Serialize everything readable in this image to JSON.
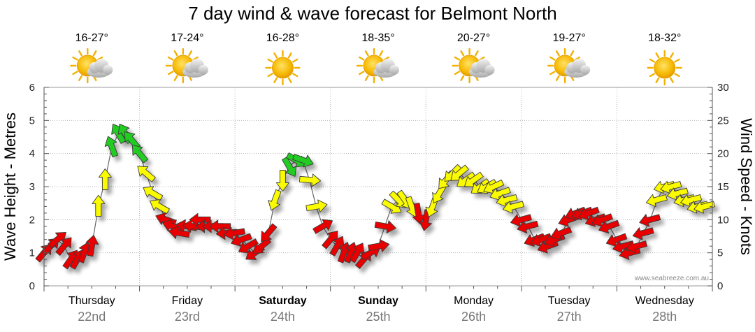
{
  "chart_data": {
    "type": "line",
    "title": "7 day wind & wave forecast for Belmont North",
    "ylabel_left": "Wave Height - Metres",
    "ylabel_right": "Wind Speed - Knots",
    "ylim_left": [
      0,
      6
    ],
    "ylim_right": [
      0,
      30
    ],
    "yticks_left": [
      "0",
      "1",
      "2",
      "3",
      "4",
      "5",
      "6"
    ],
    "yticks_right": [
      "0",
      "5",
      "10",
      "15",
      "20",
      "25",
      "30"
    ],
    "grid": true,
    "days": [
      {
        "name": "Thursday",
        "date": "22nd",
        "temp": "16-27°",
        "icon": "partly-cloudy-icon",
        "bold": false
      },
      {
        "name": "Friday",
        "date": "23rd",
        "temp": "17-24°",
        "icon": "partly-cloudy-icon",
        "bold": false
      },
      {
        "name": "Saturday",
        "date": "24th",
        "temp": "16-28°",
        "icon": "sunny-icon",
        "bold": true
      },
      {
        "name": "Sunday",
        "date": "25th",
        "temp": "18-35°",
        "icon": "partly-cloudy-icon",
        "bold": true
      },
      {
        "name": "Monday",
        "date": "26th",
        "temp": "20-27°",
        "icon": "partly-cloudy-icon",
        "bold": false
      },
      {
        "name": "Tuesday",
        "date": "27th",
        "temp": "19-27°",
        "icon": "partly-cloudy-icon",
        "bold": false
      },
      {
        "name": "Wednesday",
        "date": "28th",
        "temp": "18-32°",
        "icon": "sunny-icon",
        "bold": false
      }
    ],
    "wind_series": {
      "name": "Wind Speed",
      "x_day_fraction": [
        0.0,
        0.07,
        0.14,
        0.21,
        0.28,
        0.35,
        0.42,
        0.5,
        0.57,
        0.64,
        0.71,
        0.78,
        0.85,
        0.92,
        1.0,
        1.07,
        1.14,
        1.21,
        1.28,
        1.35,
        1.42,
        1.5,
        1.57,
        1.64,
        1.71,
        1.78,
        1.85,
        1.92,
        2.0,
        2.07,
        2.14,
        2.21,
        2.28,
        2.35,
        2.42,
        2.5,
        2.57,
        2.64,
        2.71,
        2.78,
        2.85,
        2.92,
        3.0,
        3.07,
        3.14,
        3.21,
        3.28,
        3.35,
        3.42,
        3.5,
        3.57,
        3.64,
        3.71,
        3.78,
        3.85,
        3.92,
        4.0,
        4.07,
        4.14,
        4.21,
        4.28,
        4.35,
        4.42,
        4.5,
        4.57,
        4.64,
        4.71,
        4.78,
        4.85,
        4.92,
        5.0,
        5.07,
        5.14,
        5.21,
        5.28,
        5.35,
        5.42,
        5.5,
        5.57,
        5.64,
        5.71,
        5.78,
        5.85,
        5.92,
        6.0,
        6.07,
        6.14,
        6.21,
        6.28,
        6.35,
        6.42,
        6.5,
        6.57,
        6.64,
        6.71,
        6.78,
        6.85,
        6.92
      ],
      "knots": [
        5,
        6,
        7,
        6,
        4,
        4,
        5,
        6,
        12,
        16,
        21,
        23,
        23,
        22,
        20,
        17,
        14,
        12,
        10,
        9,
        8,
        9,
        9,
        10,
        9,
        9,
        9,
        8,
        8,
        7,
        6,
        5,
        6,
        8,
        13,
        16,
        18,
        19,
        19,
        16,
        12,
        9,
        7,
        6,
        5,
        5,
        5,
        4,
        5,
        6,
        9,
        12,
        13,
        13,
        12,
        11,
        10,
        12,
        14,
        16,
        17,
        17,
        16,
        16,
        15,
        15,
        15,
        14,
        13,
        12,
        10,
        9,
        7,
        7,
        6,
        7,
        8,
        10,
        11,
        11,
        11,
        10,
        10,
        9,
        7,
        6,
        5,
        6,
        8,
        10,
        13,
        15,
        15,
        14,
        13,
        13,
        12,
        12
      ],
      "direction_deg": [
        40,
        45,
        50,
        40,
        35,
        30,
        20,
        10,
        0,
        0,
        340,
        330,
        330,
        320,
        320,
        310,
        300,
        300,
        290,
        290,
        280,
        280,
        275,
        270,
        270,
        270,
        270,
        265,
        260,
        250,
        240,
        235,
        230,
        220,
        200,
        180,
        150,
        120,
        110,
        95,
        80,
        60,
        40,
        30,
        20,
        20,
        30,
        40,
        60,
        80,
        100,
        120,
        135,
        145,
        160,
        170,
        190,
        200,
        210,
        220,
        225,
        230,
        235,
        235,
        235,
        240,
        245,
        250,
        255,
        255,
        255,
        255,
        250,
        250,
        250,
        250,
        250,
        250,
        250,
        250,
        250,
        250,
        250,
        250,
        250,
        255,
        255,
        255,
        255,
        255,
        255,
        255,
        255,
        255,
        255,
        255,
        255,
        255
      ],
      "colour_bands": [
        {
          "min": 0,
          "max": 12,
          "colour": "#e80000"
        },
        {
          "min": 12,
          "max": 18,
          "colour": "#fafa00"
        },
        {
          "min": 18,
          "max": 30,
          "colour": "#22cc22"
        }
      ]
    }
  },
  "footer": {
    "credit": "www.seabreeze.com.au"
  }
}
